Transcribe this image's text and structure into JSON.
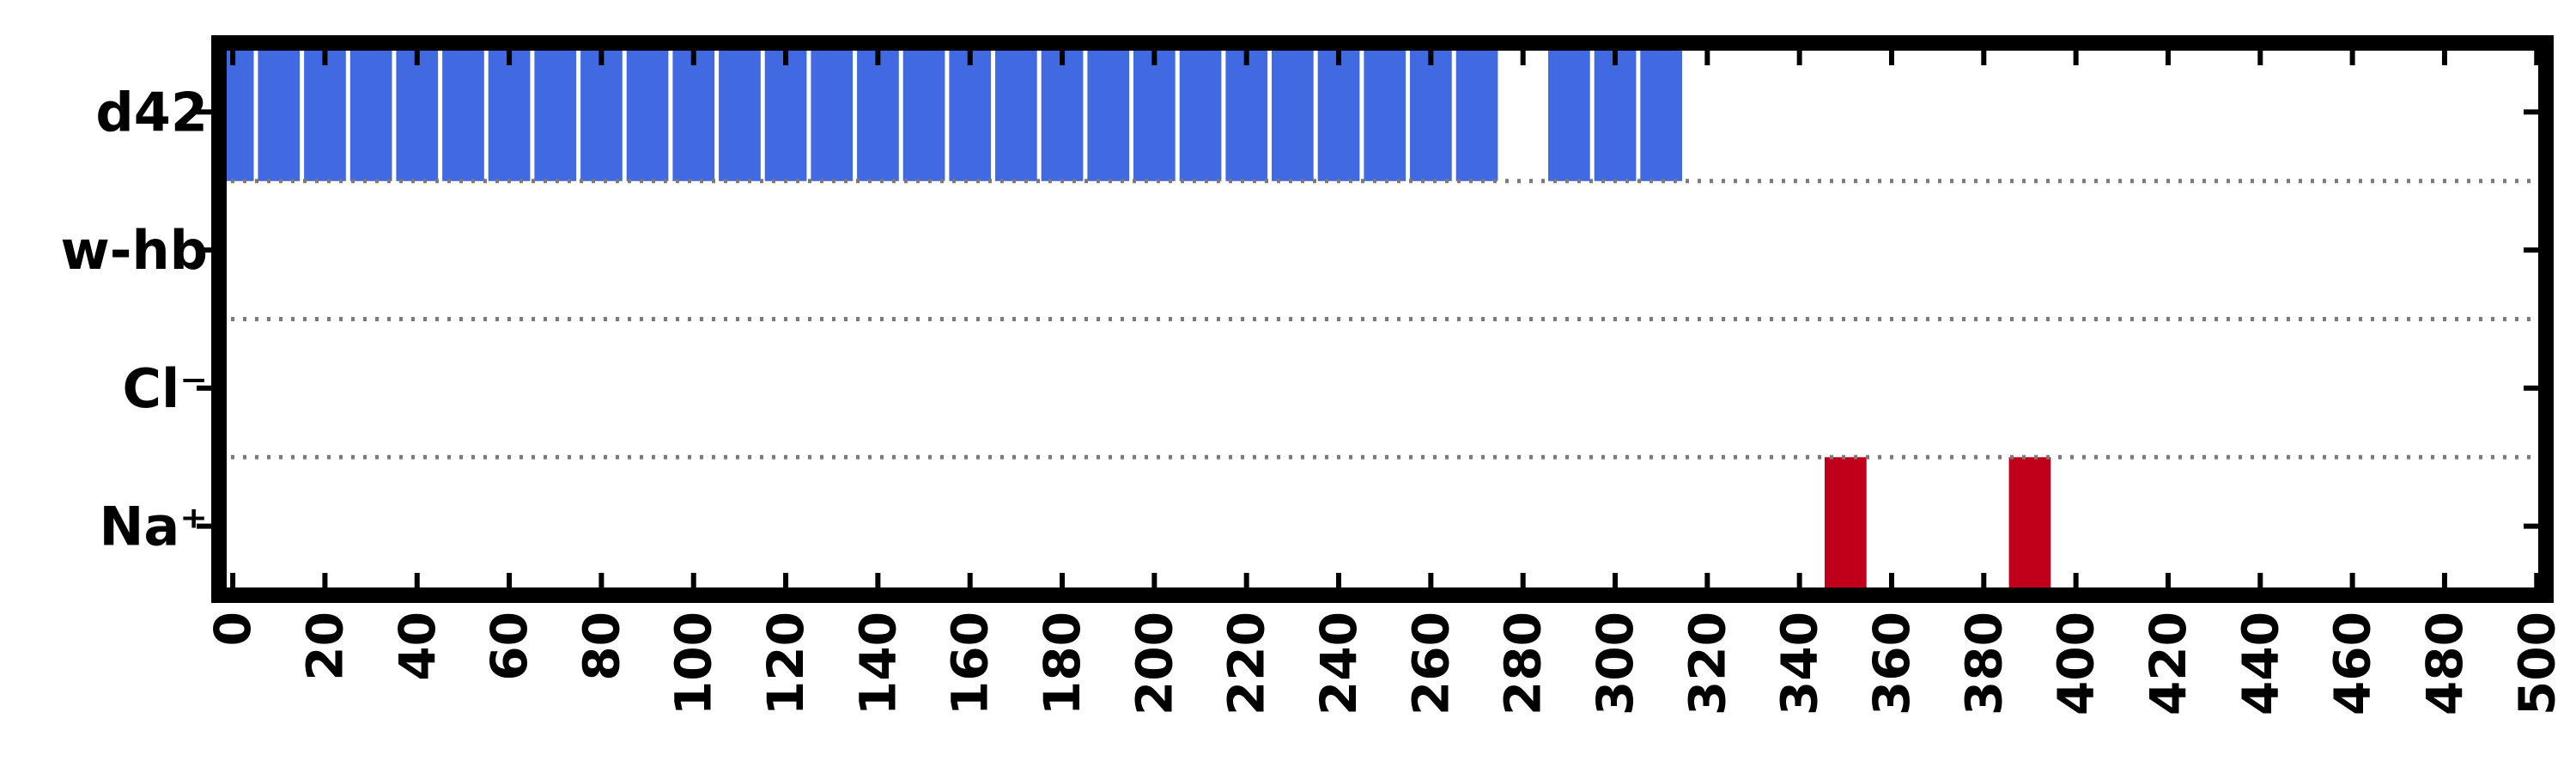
{
  "chart_data": {
    "type": "bar",
    "categories": [
      "d42",
      "w-hb",
      "Cl⁻",
      "Na⁺"
    ],
    "xlim": [
      -3,
      502
    ],
    "x_ticks": [
      0,
      20,
      40,
      60,
      80,
      100,
      120,
      140,
      160,
      180,
      200,
      220,
      240,
      260,
      280,
      300,
      320,
      340,
      360,
      380,
      400,
      420,
      440,
      460,
      480,
      500
    ],
    "x_tick_labels": [
      "0",
      "20",
      "40",
      "60",
      "80",
      "100",
      "120",
      "140",
      "160",
      "180",
      "200",
      "220",
      "240",
      "260",
      "280",
      "300",
      "320",
      "340",
      "360",
      "380",
      "400",
      "420",
      "440",
      "460",
      "480",
      "500"
    ],
    "grid": "dotted separators between rows",
    "series": [
      {
        "category": "d42",
        "color": "#4169e1",
        "x": [
          0,
          10,
          20,
          30,
          40,
          50,
          60,
          70,
          80,
          90,
          100,
          110,
          120,
          130,
          140,
          150,
          160,
          170,
          180,
          190,
          200,
          210,
          220,
          230,
          240,
          250,
          260,
          270,
          290,
          300,
          310
        ]
      },
      {
        "category": "w-hb",
        "color": "#4169e1",
        "x": []
      },
      {
        "category": "Cl⁻",
        "color": "#c0001a",
        "x": []
      },
      {
        "category": "Na⁺",
        "color": "#c0001a",
        "x": [
          350,
          390
        ]
      }
    ]
  }
}
